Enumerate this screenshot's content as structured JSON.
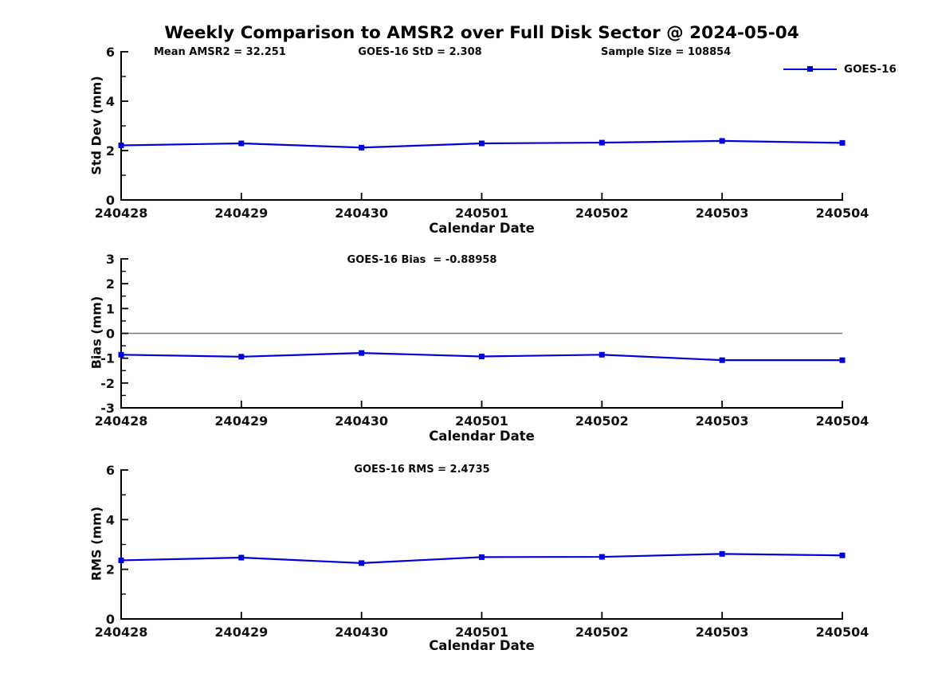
{
  "page": {
    "title": "Weekly Comparison to AMSR2 over Full Disk Sector @ 2024-05-04"
  },
  "legend": {
    "label": "GOES-16"
  },
  "colors": {
    "line": "#0000dd",
    "axis": "#000000",
    "text": "#111111",
    "zero_line": "#777777"
  },
  "chart_data": [
    {
      "type": "line",
      "title": "",
      "xlabel": "Calendar Date",
      "ylabel": "Std Dev (mm)",
      "categories": [
        "240428",
        "240429",
        "240430",
        "240501",
        "240502",
        "240503",
        "240504"
      ],
      "series": [
        {
          "name": "GOES-16",
          "values": [
            2.21,
            2.29,
            2.12,
            2.29,
            2.32,
            2.39,
            2.31
          ]
        }
      ],
      "ylim": [
        0,
        6
      ],
      "yticks": [
        0,
        2,
        4,
        6
      ],
      "minor_yticks": [
        1,
        3,
        5
      ],
      "grid": false,
      "zero_line": false,
      "legend_position": "top-right",
      "annotations": [
        "Mean AMSR2 = 32.251",
        "GOES-16 StD = 2.308",
        "Sample Size = 108854"
      ]
    },
    {
      "type": "line",
      "title": "",
      "xlabel": "Calendar Date",
      "ylabel": "Bias (mm)",
      "categories": [
        "240428",
        "240429",
        "240430",
        "240501",
        "240502",
        "240503",
        "240504"
      ],
      "series": [
        {
          "name": "GOES-16",
          "values": [
            -0.86,
            -0.94,
            -0.79,
            -0.93,
            -0.86,
            -1.08,
            -1.08
          ]
        }
      ],
      "ylim": [
        -3,
        3
      ],
      "yticks": [
        -3,
        -2,
        -1,
        0,
        1,
        2,
        3
      ],
      "minor_yticks": [
        -2.5,
        -1.5,
        -0.5,
        0.5,
        1.5,
        2.5
      ],
      "grid": false,
      "zero_line": true,
      "annotations": [
        "GOES-16 Bias  = -0.88958"
      ]
    },
    {
      "type": "line",
      "title": "",
      "xlabel": "Calendar Date",
      "ylabel": "RMS (mm)",
      "categories": [
        "240428",
        "240429",
        "240430",
        "240501",
        "240502",
        "240503",
        "240504"
      ],
      "series": [
        {
          "name": "GOES-16",
          "values": [
            2.36,
            2.47,
            2.25,
            2.49,
            2.5,
            2.62,
            2.56
          ]
        }
      ],
      "ylim": [
        0,
        6
      ],
      "yticks": [
        0,
        2,
        4,
        6
      ],
      "minor_yticks": [
        1,
        3,
        5
      ],
      "grid": false,
      "zero_line": false,
      "annotations": [
        "GOES-16 RMS = 2.4735"
      ]
    }
  ]
}
